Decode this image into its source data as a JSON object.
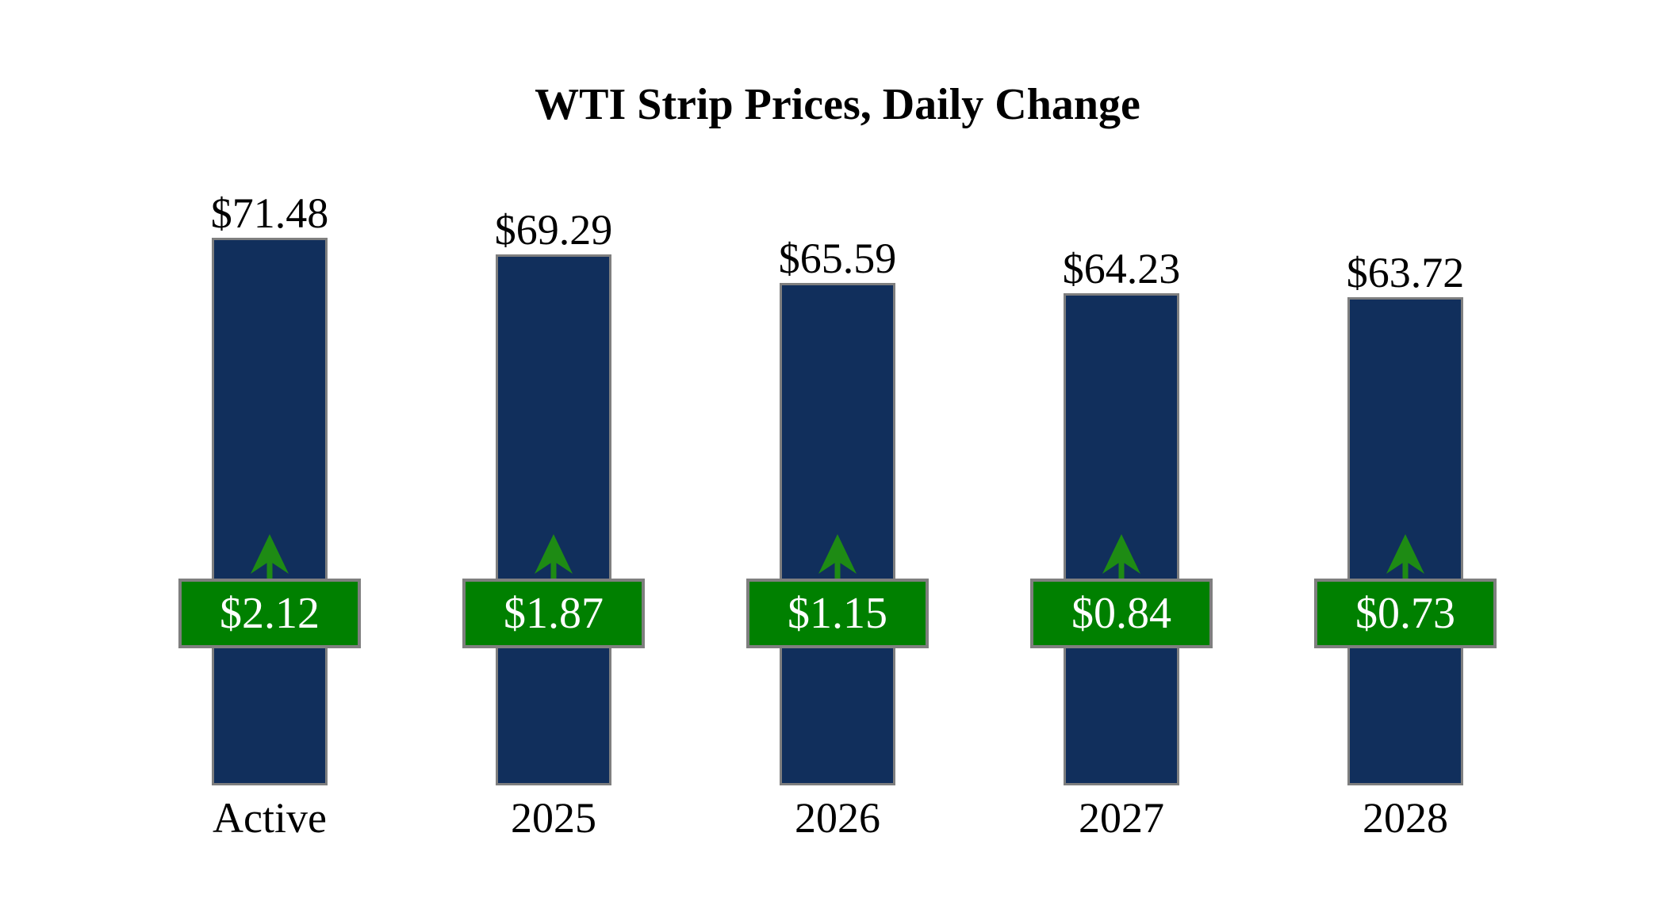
{
  "chart_data": {
    "type": "bar",
    "title": "WTI Strip Prices, Daily Change",
    "categories": [
      "Active",
      "2025",
      "2026",
      "2027",
      "2028"
    ],
    "series": [
      {
        "name": "strip-price",
        "values": [
          71.48,
          69.29,
          65.59,
          64.23,
          63.72
        ],
        "labels": [
          "$71.48",
          "$69.29",
          "$65.59",
          "$64.23",
          "$63.72"
        ]
      },
      {
        "name": "daily-change",
        "values": [
          2.12,
          1.87,
          1.15,
          0.84,
          0.73
        ],
        "labels": [
          "$2.12",
          "$1.87",
          "$1.15",
          "$0.84",
          "$0.73"
        ],
        "direction": "up"
      }
    ],
    "ylim": [
      0,
      71.48
    ],
    "grid": false,
    "legend": false,
    "colors": {
      "bar_fill": "#112f5c",
      "bar_border": "#7f7f7f",
      "badge_fill": "#008000",
      "badge_border": "#7f7f7f",
      "badge_text": "#ffffff",
      "arrow": "#1e8b14",
      "text": "#000000",
      "background": "#ffffff"
    }
  }
}
